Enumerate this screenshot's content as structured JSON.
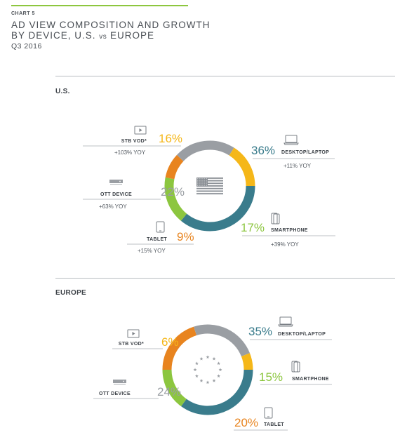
{
  "header": {
    "chart_label": "CHART 5",
    "title_line1": "AD VIEW COMPOSITION AND GROWTH",
    "title_line2_pre": "BY DEVICE, U.S. ",
    "title_line2_vs": "vs",
    "title_line2_post": " EUROPE",
    "period": "Q3 2016"
  },
  "colors": {
    "desktop": "#3a7c8c",
    "smartphone": "#8cc63f",
    "tablet": "#e8841f",
    "ott": "#9a9ea3",
    "stb": "#f5b719"
  },
  "chart_data": [
    {
      "type": "pie",
      "title": "U.S.",
      "slices": [
        {
          "key": "desktop",
          "label": "DESKTOP/LAPTOP",
          "value": 36,
          "pct_label": "36%",
          "yoy": "+11% YOY",
          "icon": "laptop-icon"
        },
        {
          "key": "smartphone",
          "label": "SMARTPHONE",
          "value": 17,
          "pct_label": "17%",
          "yoy": "+39% YOY",
          "icon": "smartphone-icon"
        },
        {
          "key": "tablet",
          "label": "TABLET",
          "value": 9,
          "pct_label": "9%",
          "yoy": "+15% YOY",
          "icon": "tablet-icon"
        },
        {
          "key": "ott",
          "label": "OTT DEVICE",
          "value": 22,
          "pct_label": "22%",
          "yoy": "+63% YOY",
          "icon": "ott-device-icon"
        },
        {
          "key": "stb",
          "label": "STB VOD*",
          "value": 16,
          "pct_label": "16%",
          "yoy": "+103% YOY",
          "icon": "tv-icon"
        }
      ],
      "center_icon": "us-flag-icon"
    },
    {
      "type": "pie",
      "title": "EUROPE",
      "slices": [
        {
          "key": "desktop",
          "label": "DESKTOP/LAPTOP",
          "value": 35,
          "pct_label": "35%",
          "yoy": "",
          "icon": "laptop-icon"
        },
        {
          "key": "smartphone",
          "label": "SMARTPHONE",
          "value": 15,
          "pct_label": "15%",
          "yoy": "",
          "icon": "smartphone-icon"
        },
        {
          "key": "tablet",
          "label": "TABLET",
          "value": 20,
          "pct_label": "20%",
          "yoy": "",
          "icon": "tablet-icon"
        },
        {
          "key": "ott",
          "label": "OTT DEVICE",
          "value": 24,
          "pct_label": "24%",
          "yoy": "",
          "icon": "ott-device-icon"
        },
        {
          "key": "stb",
          "label": "STB VOD*",
          "value": 6,
          "pct_label": "6%",
          "yoy": "",
          "icon": "tv-icon"
        }
      ],
      "center_icon": "eu-stars-icon"
    }
  ]
}
